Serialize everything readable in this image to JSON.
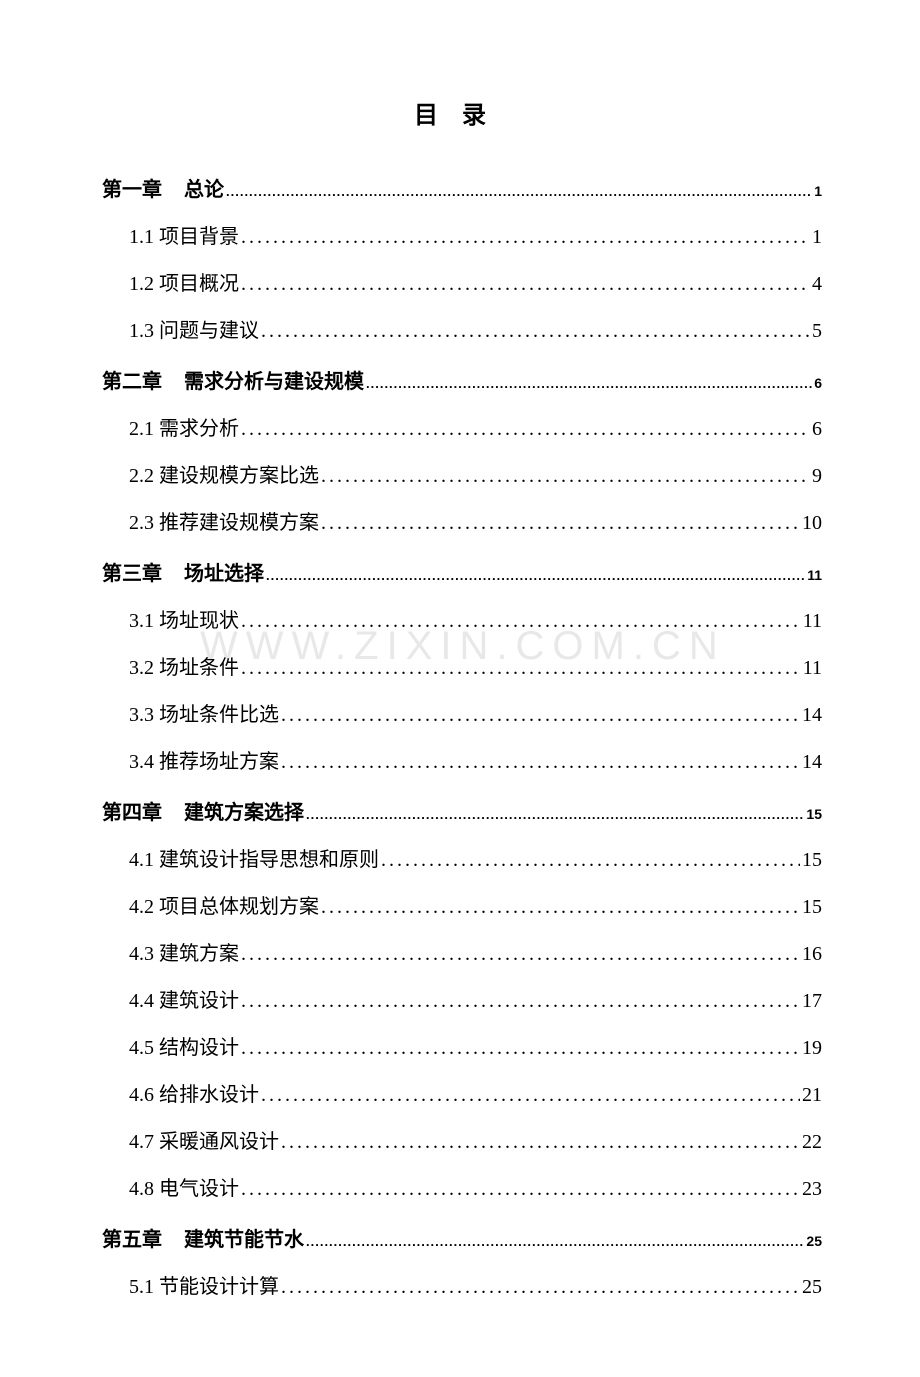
{
  "title": "目录",
  "watermark": "WWW.ZIXIN.COM.CN",
  "colors": {
    "background": "#ffffff",
    "text": "#000000",
    "watermark": "#e8e8e8"
  },
  "typography": {
    "title_fontsize": 24,
    "chapter_fontsize": 20,
    "subitem_fontsize": 20,
    "chapter_pagenum_fontsize": 14,
    "title_letter_spacing": 24
  },
  "chapters": [
    {
      "prefix": "第一章",
      "title": "总论",
      "page": "1",
      "items": [
        {
          "label": "1.1 项目背景",
          "page": "1"
        },
        {
          "label": "1.2 项目概况",
          "page": "4"
        },
        {
          "label": "1.3 问题与建议",
          "page": "5"
        }
      ]
    },
    {
      "prefix": "第二章",
      "title": "需求分析与建设规模",
      "page": "6",
      "items": [
        {
          "label": "2.1 需求分析",
          "page": "6"
        },
        {
          "label": "2.2 建设规模方案比选",
          "page": "9"
        },
        {
          "label": "2.3 推荐建设规模方案",
          "page": "10"
        }
      ]
    },
    {
      "prefix": "第三章",
      "title": "场址选择",
      "page": "11",
      "items": [
        {
          "label": "3.1 场址现状",
          "page": "11"
        },
        {
          "label": "3.2 场址条件",
          "page": "11"
        },
        {
          "label": "3.3 场址条件比选",
          "page": "14"
        },
        {
          "label": "3.4 推荐场址方案",
          "page": "14"
        }
      ]
    },
    {
      "prefix": "第四章",
      "title": "建筑方案选择",
      "page": "15",
      "items": [
        {
          "label": "4.1 建筑设计指导思想和原则",
          "page": "15"
        },
        {
          "label": "4.2 项目总体规划方案",
          "page": "15"
        },
        {
          "label": "4.3 建筑方案",
          "page": "16"
        },
        {
          "label": "4.4 建筑设计",
          "page": "17"
        },
        {
          "label": "4.5 结构设计",
          "page": "19"
        },
        {
          "label": "4.6 给排水设计",
          "page": "21"
        },
        {
          "label": "4.7 采暖通风设计",
          "page": "22"
        },
        {
          "label": "4.8 电气设计",
          "page": "23"
        }
      ]
    },
    {
      "prefix": "第五章",
      "title": "建筑节能节水",
      "page": "25",
      "items": [
        {
          "label": "5.1 节能设计计算",
          "page": "25"
        }
      ]
    }
  ]
}
